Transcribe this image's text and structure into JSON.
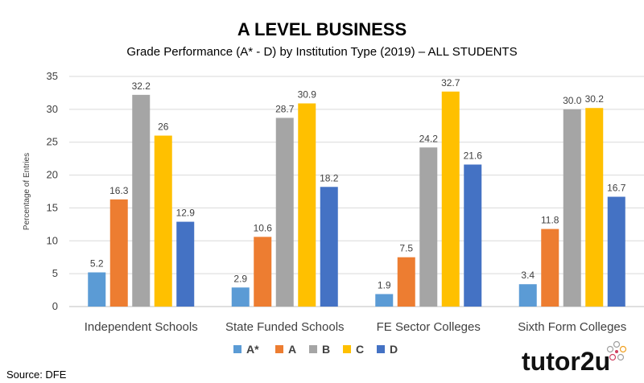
{
  "chart_data": {
    "type": "bar",
    "title": "A LEVEL BUSINESS",
    "subtitle": "Grade Performance (A* - D) by Institution Type (2019) – ALL STUDENTS",
    "ylabel": "Percentage of Entries",
    "xlabel": "",
    "ylim": [
      0,
      35
    ],
    "yticks": [
      "0",
      "5",
      "10",
      "15",
      "20",
      "25",
      "30",
      "35"
    ],
    "grid": true,
    "legend_position": "bottom",
    "categories": [
      "Independent Schools",
      "State Funded Schools",
      "FE Sector Colleges",
      "Sixth Form Colleges"
    ],
    "series": [
      {
        "name": "A*",
        "color": "#5B9BD5",
        "values": [
          5.2,
          2.9,
          1.9,
          3.4
        ],
        "labels": [
          "5.2",
          "2.9",
          "1.9",
          "3.4"
        ]
      },
      {
        "name": "A",
        "color": "#ED7D31",
        "values": [
          16.3,
          10.6,
          7.5,
          11.8
        ],
        "labels": [
          "16.3",
          "10.6",
          "7.5",
          "11.8"
        ]
      },
      {
        "name": "B",
        "color": "#A5A5A5",
        "values": [
          32.2,
          28.7,
          24.2,
          30.0
        ],
        "labels": [
          "32.2",
          "28.7",
          "24.2",
          "30.0"
        ]
      },
      {
        "name": "C",
        "color": "#FFC000",
        "values": [
          26,
          30.9,
          32.7,
          30.2
        ],
        "labels": [
          "26",
          "30.9",
          "32.7",
          "30.2"
        ]
      },
      {
        "name": "D",
        "color": "#4472C4",
        "values": [
          12.9,
          18.2,
          21.6,
          16.7
        ],
        "labels": [
          "12.9",
          "18.2",
          "21.6",
          "16.7"
        ]
      }
    ]
  },
  "source": "Source: DFE",
  "brand": "tutor2u"
}
